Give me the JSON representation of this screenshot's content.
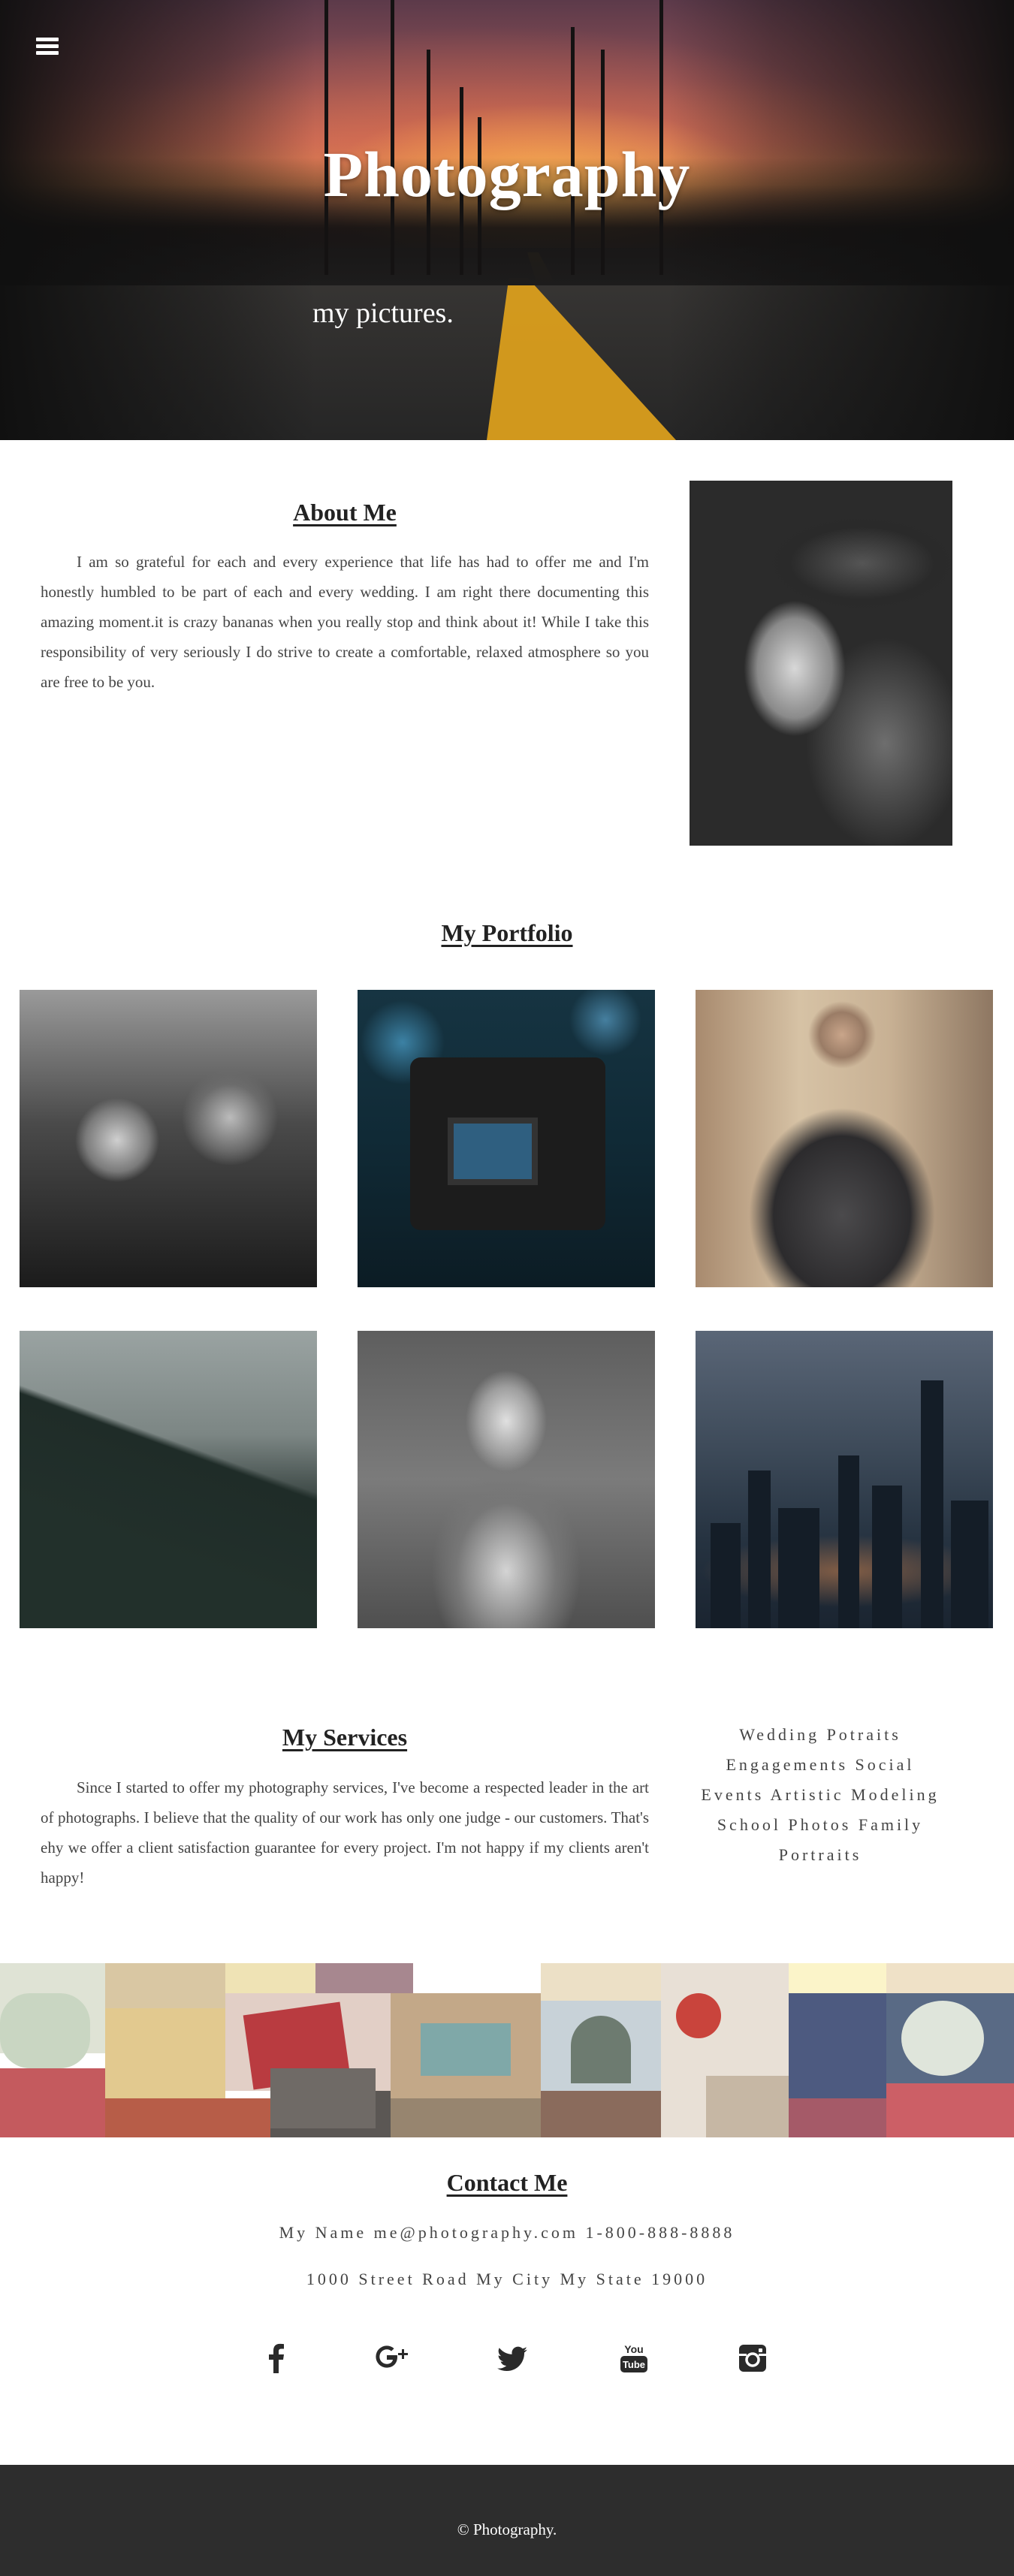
{
  "hero": {
    "title": "Photography",
    "subtitle": "my pictures.",
    "menu_icon": "hamburger-menu-icon"
  },
  "about": {
    "heading": "About Me",
    "text": "I am so grateful for each and every experience that life has had to offer me and I'm honestly humbled to be part of each and every wedding. I am right there documenting this amazing moment.it is crazy bananas when you really stop and think about it! While I take this responsibility of very seriously I do strive to create a comfortable, relaxed atmosphere so you are free to be you."
  },
  "portfolio": {
    "heading": "My Portfolio"
  },
  "services": {
    "heading": "My Services",
    "text": "Since I started to offer my photography services, I've become a respected leader in the art of photographs. I believe that the quality of our work has only one judge - our customers. That's ehy we offer a client satisfaction guarantee for every project. I'm not happy if my clients aren't happy!",
    "list_lines": [
      "Wedding Potraits",
      "Engagements Social",
      "Events Artistic Modeling",
      "School Photos Family",
      "Portraits"
    ]
  },
  "contact": {
    "heading": "Contact Me",
    "line1": "My Name me@photography.com 1-800-888-8888",
    "line2": "1000 Street Road My City My State 19000",
    "social_icons": [
      "facebook-icon",
      "google-plus-icon",
      "twitter-icon",
      "youtube-icon",
      "instagram-icon"
    ]
  },
  "footer": {
    "text": "© Photography."
  }
}
